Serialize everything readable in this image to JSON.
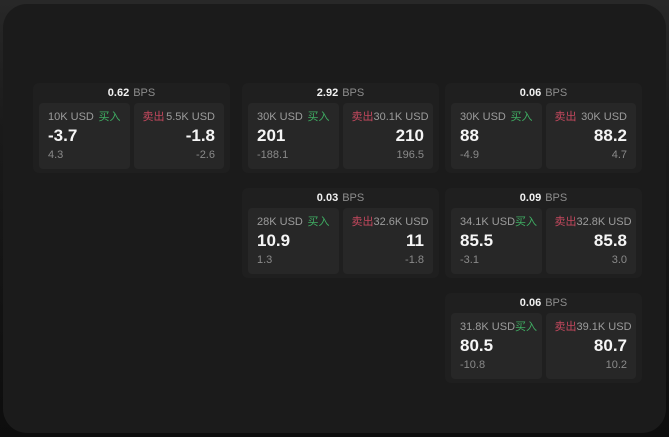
{
  "labels": {
    "buy": "买入",
    "sell": "卖出",
    "bps_unit": "BPS"
  },
  "colors": {
    "buy_green": "#3fae63",
    "sell_red": "#c4485e",
    "card_bg": "#1f1f1f",
    "panel_bg": "#272727",
    "page_bg": "#1b1b1b"
  },
  "cards": [
    {
      "bps": "0.62",
      "buy": {
        "amount": "10K USD",
        "value": "-3.7",
        "sub": "4.3"
      },
      "sell": {
        "amount": "5.5K USD",
        "value": "-1.8",
        "sub": "-2.6"
      }
    },
    {
      "bps": "2.92",
      "buy": {
        "amount": "30K USD",
        "value": "201",
        "sub": "-188.1"
      },
      "sell": {
        "amount": "30.1K USD",
        "value": "210",
        "sub": "196.5"
      }
    },
    {
      "bps": "0.06",
      "buy": {
        "amount": "30K USD",
        "value": "88",
        "sub": "-4.9"
      },
      "sell": {
        "amount": "30K USD",
        "value": "88.2",
        "sub": "4.7"
      }
    },
    {
      "bps": "0.03",
      "buy": {
        "amount": "28K USD",
        "value": "10.9",
        "sub": "1.3"
      },
      "sell": {
        "amount": "32.6K USD",
        "value": "11",
        "sub": "-1.8"
      }
    },
    {
      "bps": "0.09",
      "buy": {
        "amount": "34.1K USD",
        "value": "85.5",
        "sub": "-3.1"
      },
      "sell": {
        "amount": "32.8K USD",
        "value": "85.8",
        "sub": "3.0"
      }
    },
    {
      "bps": "0.06",
      "buy": {
        "amount": "31.8K USD",
        "value": "80.5",
        "sub": "-10.8"
      },
      "sell": {
        "amount": "39.1K USD",
        "value": "80.7",
        "sub": "10.2"
      }
    }
  ]
}
